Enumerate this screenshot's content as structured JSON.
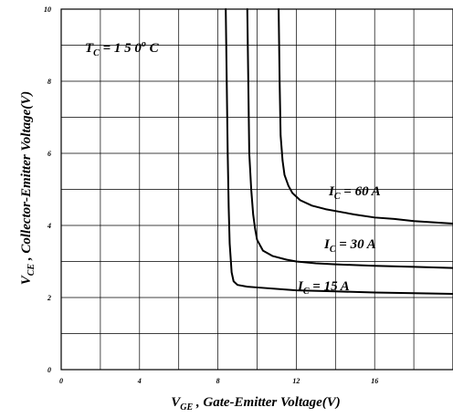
{
  "chart_data": {
    "type": "line",
    "xlabel": {
      "main": "V",
      "sub": "GE",
      "rest": " , Gate-Emitter Voltage(V)"
    },
    "ylabel": {
      "main": "V",
      "sub": "CE",
      "rest": " , Collector-Emitter Voltage(V)"
    },
    "xlim": [
      0,
      20
    ],
    "ylim": [
      0,
      10
    ],
    "xticks": [
      "0",
      "4",
      "8",
      "12",
      "16"
    ],
    "yticks": [
      "0",
      "2",
      "4",
      "6",
      "8",
      "10"
    ],
    "grid": true,
    "annotation": {
      "main": "T",
      "sub": "C",
      "rest": " = 1 5 0",
      "sup": "o",
      "unit": " C"
    },
    "series": [
      {
        "name": {
          "main": "I",
          "sub": "C",
          "rest": " = 15 A"
        },
        "x": [
          8.4,
          8.45,
          8.5,
          8.55,
          8.6,
          8.7,
          8.8,
          9.0,
          9.5,
          10,
          12,
          14,
          16,
          18,
          20
        ],
        "y": [
          10,
          8.0,
          6.0,
          4.5,
          3.5,
          2.7,
          2.45,
          2.35,
          2.3,
          2.28,
          2.2,
          2.17,
          2.14,
          2.12,
          2.1
        ]
      },
      {
        "name": {
          "main": "I",
          "sub": "C",
          "rest": " = 30 A"
        },
        "x": [
          9.5,
          9.55,
          9.6,
          9.7,
          9.8,
          9.9,
          10.0,
          10.3,
          10.8,
          11.5,
          12,
          13,
          14,
          16,
          18,
          20
        ],
        "y": [
          10,
          8.0,
          6.0,
          5.0,
          4.3,
          3.9,
          3.6,
          3.3,
          3.15,
          3.05,
          3.0,
          2.95,
          2.92,
          2.88,
          2.85,
          2.82
        ]
      },
      {
        "name": {
          "main": "I",
          "sub": "C",
          "rest": " = 60 A"
        },
        "x": [
          11.1,
          11.15,
          11.2,
          11.3,
          11.4,
          11.6,
          11.8,
          12.2,
          12.8,
          13.5,
          14,
          15,
          16,
          17,
          18,
          20
        ],
        "y": [
          10,
          8.0,
          6.5,
          5.8,
          5.4,
          5.1,
          4.9,
          4.7,
          4.55,
          4.45,
          4.4,
          4.3,
          4.22,
          4.18,
          4.12,
          4.05
        ]
      }
    ]
  }
}
